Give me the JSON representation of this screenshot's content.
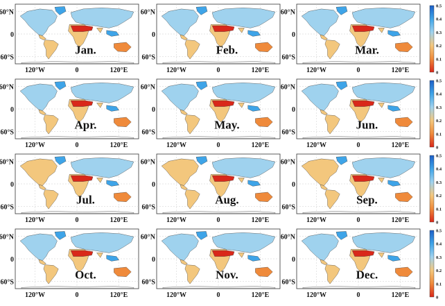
{
  "chart_data": {
    "type": "heatmap",
    "layout": "4 rows x 3 columns of global maps",
    "panels": [
      {
        "month": "Jan.",
        "range": [
          0,
          0.5
        ]
      },
      {
        "month": "Feb.",
        "range": [
          0,
          0.5
        ]
      },
      {
        "month": "Mar.",
        "range": [
          0,
          0.5
        ]
      },
      {
        "month": "Apr.",
        "range": [
          0,
          0.5
        ]
      },
      {
        "month": "May.",
        "range": [
          0,
          0.5
        ]
      },
      {
        "month": "Jun.",
        "range": [
          0,
          0.5
        ]
      },
      {
        "month": "Jul.",
        "range": [
          0,
          0.5
        ]
      },
      {
        "month": "Aug.",
        "range": [
          0,
          0.5
        ]
      },
      {
        "month": "Sep.",
        "range": [
          0,
          0.5
        ]
      },
      {
        "month": "Oct.",
        "range": [
          0,
          0.5
        ]
      },
      {
        "month": "Nov.",
        "range": [
          0,
          0.5
        ]
      },
      {
        "month": "Dec.",
        "range": [
          0,
          0.5
        ]
      }
    ],
    "x_ticks": [
      "120°W",
      "0",
      "120°E"
    ],
    "y_ticks": [
      "60°N",
      "0",
      "60°S"
    ],
    "colorbar": {
      "ticks": [
        "0.5",
        "0.4",
        "0.3",
        "0.2",
        "0.1",
        "0"
      ],
      "colors": [
        "#1c5fc7",
        "#3ea4e8",
        "#9fd2ee",
        "#f3c77d",
        "#ef8a3b",
        "#d9281a"
      ]
    }
  }
}
